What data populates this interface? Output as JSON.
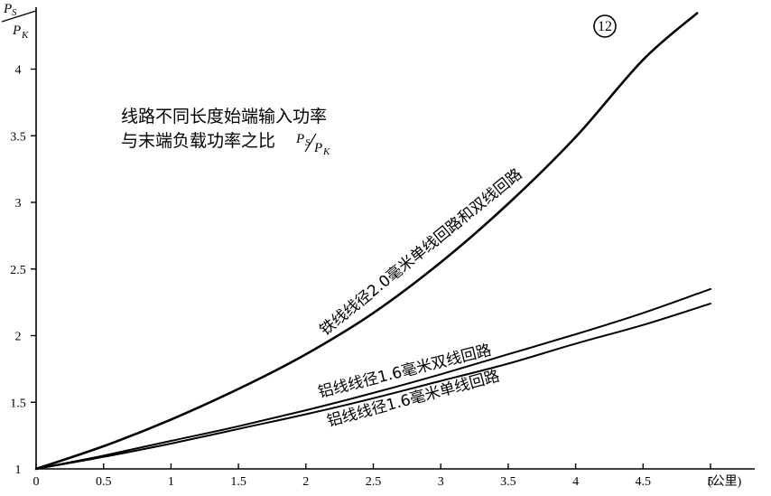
{
  "chart_data": {
    "type": "line",
    "title_lines": [
      "线路不同长度始端输入功率",
      "与末端负载功率之比"
    ],
    "title_ratio": {
      "num": "P",
      "num_sub": "S",
      "den": "P",
      "den_sub": "K"
    },
    "badge": "12",
    "xlabel": "(公里)",
    "ylabel": {
      "num": "P",
      "num_sub": "S",
      "den": "P",
      "den_sub": "K"
    },
    "xlim": [
      0,
      5.3
    ],
    "ylim": [
      1,
      4.4
    ],
    "x_ticks": [
      {
        "v": 0,
        "label": "0"
      },
      {
        "v": 0.5,
        "label": "0.5"
      },
      {
        "v": 1,
        "label": "1"
      },
      {
        "v": 1.5,
        "label": "1.5"
      },
      {
        "v": 2,
        "label": "2"
      },
      {
        "v": 2.5,
        "label": "2.5"
      },
      {
        "v": 3,
        "label": "3"
      },
      {
        "v": 3.5,
        "label": "3.5"
      },
      {
        "v": 4,
        "label": "4"
      },
      {
        "v": 4.5,
        "label": "4.5"
      },
      {
        "v": 5,
        "label": "5"
      }
    ],
    "y_ticks": [
      {
        "v": 1,
        "label": "1"
      },
      {
        "v": 1.5,
        "label": "1.5"
      },
      {
        "v": 2,
        "label": "2"
      },
      {
        "v": 2.5,
        "label": "2.5"
      },
      {
        "v": 3,
        "label": "3"
      },
      {
        "v": 3.5,
        "label": "3.5"
      },
      {
        "v": 4,
        "label": "4"
      }
    ],
    "series": [
      {
        "name": "铁线线径2.0毫米单线回路和双线回路",
        "stroke": "#000000",
        "x": [
          0,
          0.5,
          1,
          1.5,
          2,
          2.5,
          3,
          3.5,
          4,
          4.5,
          4.9
        ],
        "y": [
          1,
          1.17,
          1.37,
          1.6,
          1.86,
          2.17,
          2.55,
          2.99,
          3.49,
          4.07,
          4.42
        ]
      },
      {
        "name": "铝线线径1.6毫米双线回路",
        "stroke": "#000000",
        "x": [
          0,
          0.5,
          1,
          1.5,
          2,
          2.5,
          3,
          3.5,
          4,
          4.5,
          5
        ],
        "y": [
          1,
          1.1,
          1.21,
          1.32,
          1.44,
          1.57,
          1.71,
          1.86,
          2.01,
          2.17,
          2.35
        ]
      },
      {
        "name": "铝线线径1.6毫米单线回路",
        "stroke": "#000000",
        "x": [
          0,
          0.5,
          1,
          1.5,
          2,
          2.5,
          3,
          3.5,
          4,
          4.5,
          5
        ],
        "y": [
          1,
          1.09,
          1.19,
          1.3,
          1.41,
          1.53,
          1.66,
          1.79,
          1.94,
          2.08,
          2.24
        ]
      }
    ]
  }
}
